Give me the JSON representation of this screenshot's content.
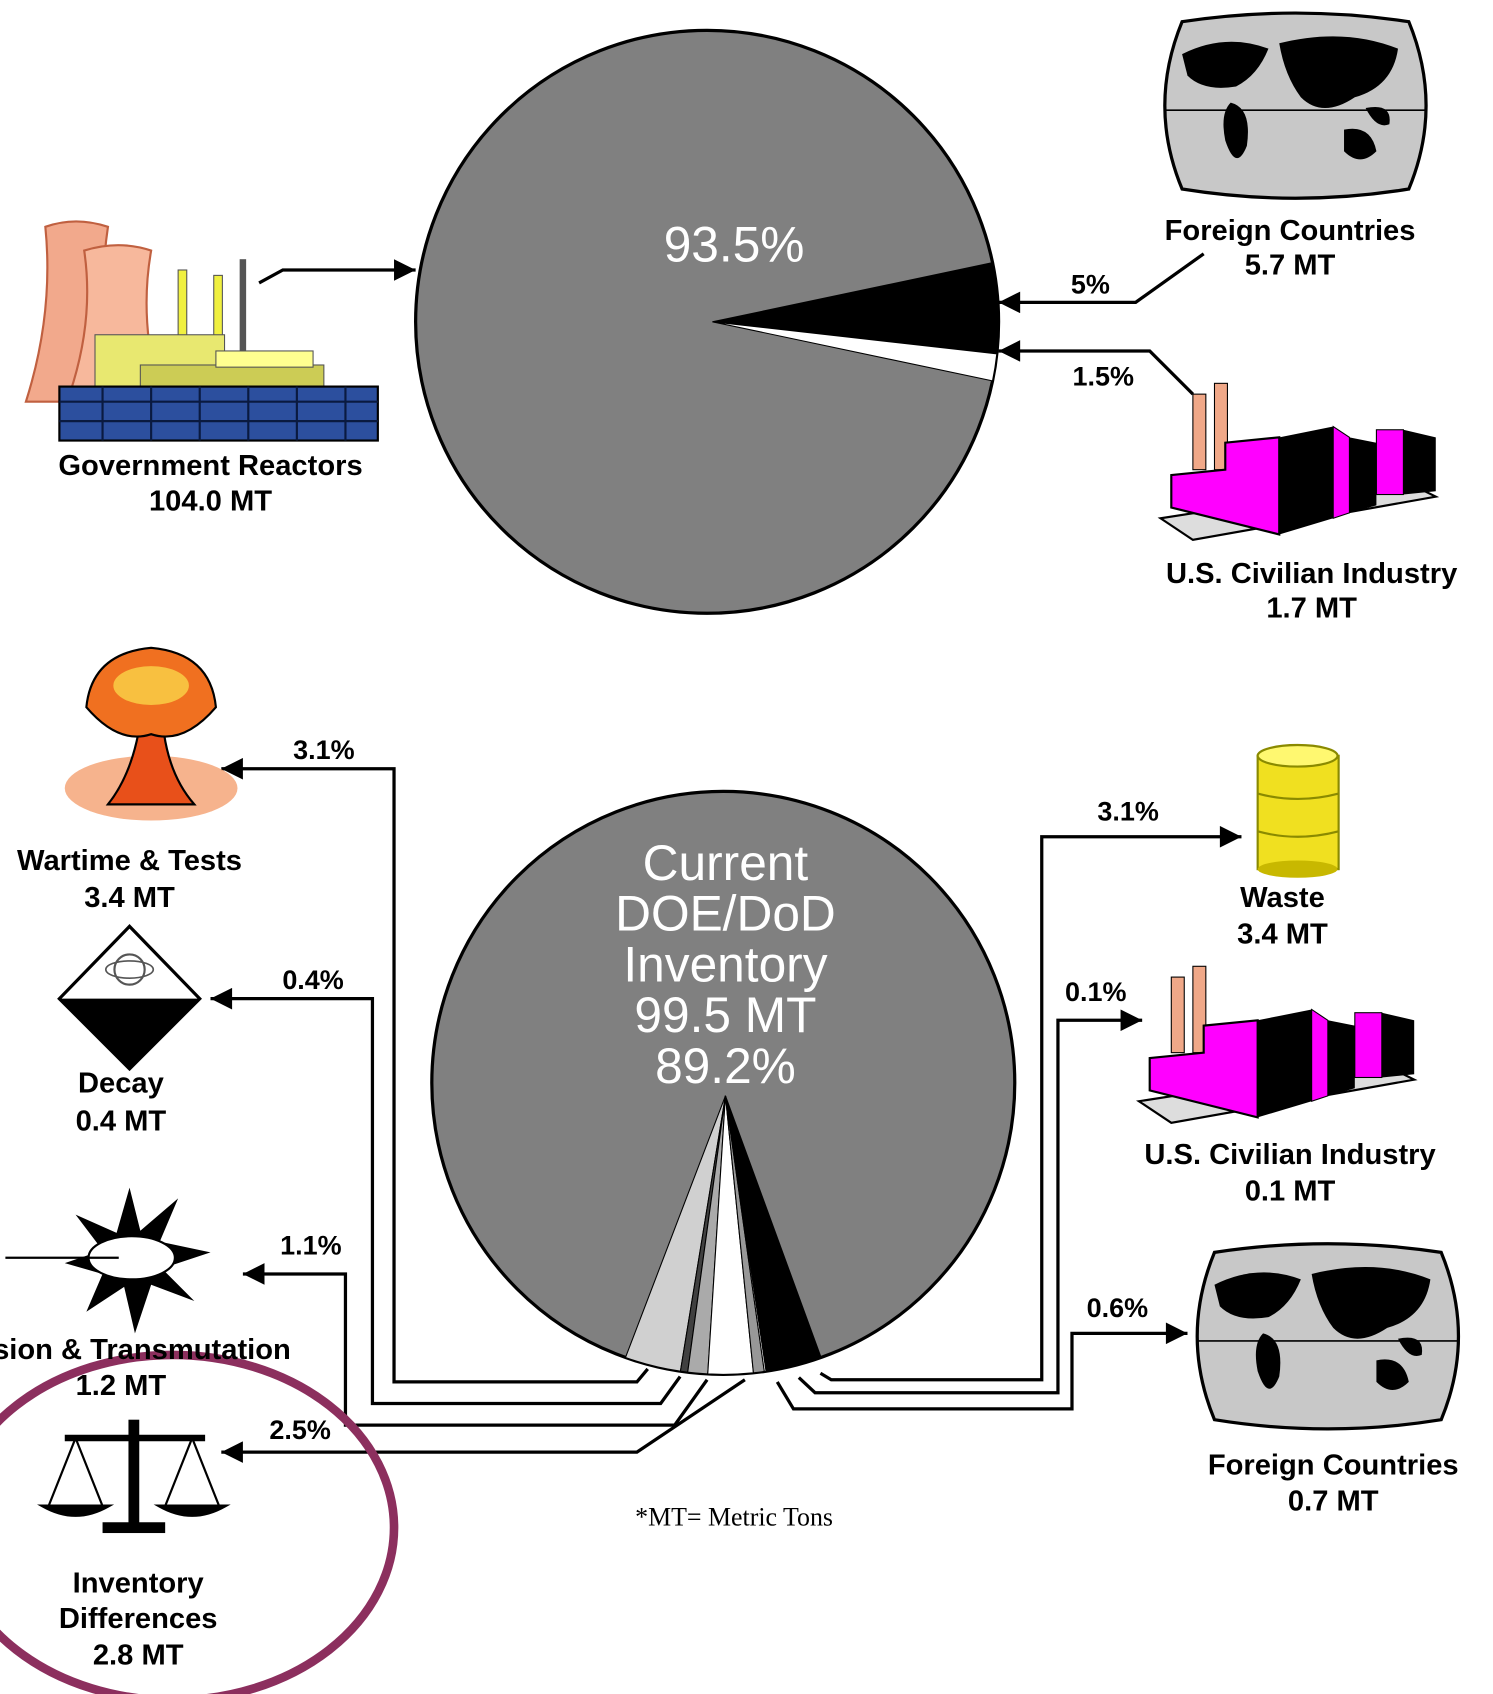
{
  "top_pie": {
    "values": [
      93.5,
      5,
      1.5
    ],
    "value_labels": [
      "93.5%",
      "5%",
      "1.5%"
    ],
    "colors": [
      "#808080",
      "#000000",
      "#ffffff"
    ],
    "sources": [
      {
        "name": "Government Reactors",
        "amount": "104.0 MT"
      },
      {
        "name": "Foreign Countries",
        "amount": "5.7 MT"
      },
      {
        "name": "U.S. Civilian Industry",
        "amount": "1.7 MT"
      }
    ]
  },
  "bottom_pie": {
    "center_label": [
      "Current",
      "DOE/DoD",
      "Inventory",
      "99.5 MT"
    ],
    "values": [
      89.2,
      3.1,
      0.4,
      1.1,
      2.5,
      0.6,
      0.1,
      3.1
    ],
    "value_labels": [
      "89.2%",
      "3.1%",
      "0.4%",
      "1.1%",
      "2.5%",
      "0.6%",
      "0.1%",
      "3.1%"
    ],
    "colors": [
      "#808080",
      "#d0d0d0",
      "#404040",
      "#aaaaaa",
      "#ffffff",
      "#989898",
      "#ffffff",
      "#000000"
    ],
    "destinations": [
      {
        "name": [
          "Wartime & Tests"
        ],
        "amount": "3.4 MT"
      },
      {
        "name": [
          "Decay"
        ],
        "amount": "0.4 MT"
      },
      {
        "name": [
          "Fission & Transmutation"
        ],
        "amount": "1.2 MT"
      },
      {
        "name": [
          "Inventory",
          "Differences"
        ],
        "amount": "2.8 MT"
      },
      {
        "name": [
          "Foreign Countries"
        ],
        "amount": "0.7 MT"
      },
      {
        "name": [
          "U.S. Civilian Industry"
        ],
        "amount": "0.1 MT"
      },
      {
        "name": [
          "Waste"
        ],
        "amount": "3.4 MT"
      }
    ]
  },
  "footnote": "*MT= Metric Tons"
}
